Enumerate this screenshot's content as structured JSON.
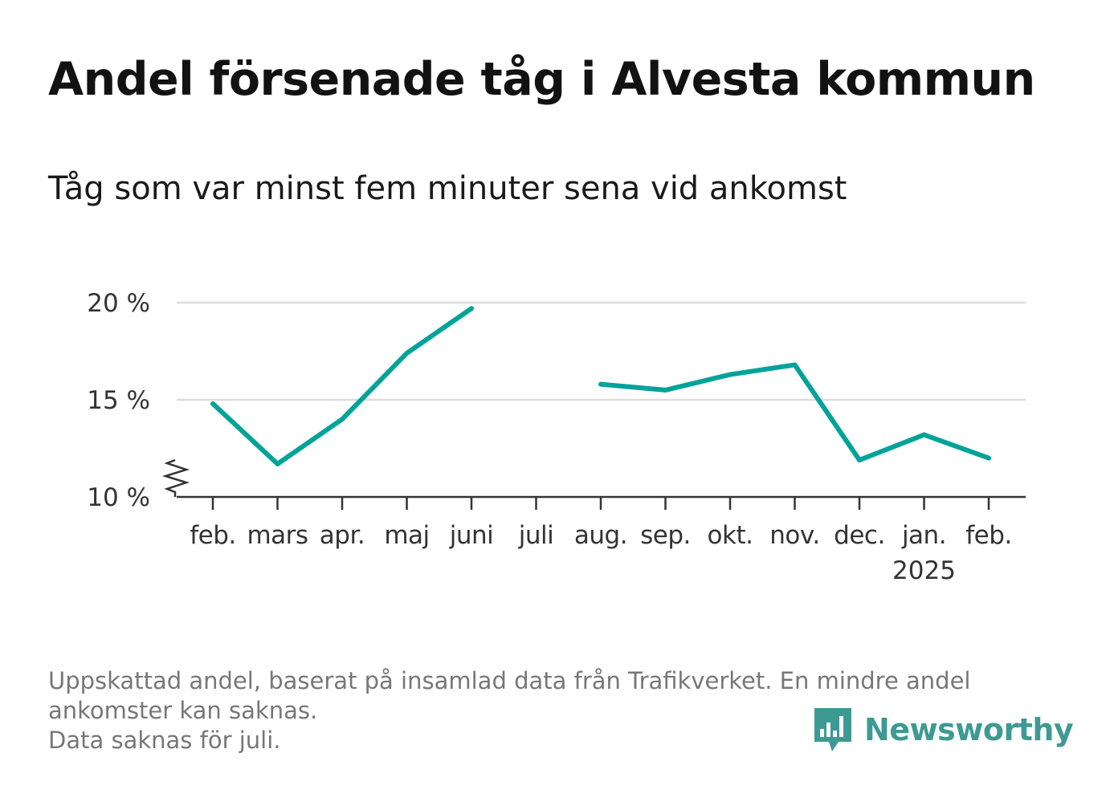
{
  "title": "Andel försenade tåg i Alvesta kommun",
  "subtitle": "Tåg som var minst fem minuter sena vid ankomst",
  "footnote": {
    "line1": "Uppskattad andel, baserat på insamlad data från Trafikverket. En mindre andel",
    "line2": "ankomster kan saknas.",
    "line3": "Data saknas för juli."
  },
  "brand": {
    "name": "Newsworthy",
    "icon": "bar-chart-speech-bubble-icon",
    "color": "#3d9a93"
  },
  "chart_data": {
    "type": "line",
    "categories": [
      "feb.",
      "mars",
      "apr.",
      "maj",
      "juni",
      "juli",
      "aug.",
      "sep.",
      "okt.",
      "nov.",
      "dec.",
      "jan.",
      "feb."
    ],
    "year_label": "2025",
    "year_label_under": "jan.",
    "series": [
      {
        "values": [
          14.8,
          11.7,
          14.0,
          17.4,
          19.7,
          null,
          15.8,
          15.5,
          16.3,
          16.8,
          11.9,
          13.2,
          12.0
        ],
        "color": "#00a39a"
      }
    ],
    "ylim": [
      10,
      20
    ],
    "yticks": [
      {
        "value": 10,
        "label": "10 %"
      },
      {
        "value": 15,
        "label": "15 %"
      },
      {
        "value": 20,
        "label": "20 %"
      }
    ],
    "axis_break": true,
    "grid": true,
    "gridline_color": "#dddddd",
    "axis_color": "#333333",
    "xlabel": "",
    "ylabel": ""
  }
}
